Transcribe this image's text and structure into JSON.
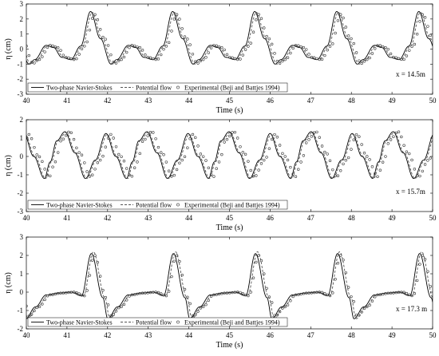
{
  "legend_labels": {
    "ns": "Two-phase Navier-Stokes",
    "pf": "Potential flow",
    "exp": "Experimental (Beji and Battjes 1994)"
  },
  "colors": {
    "ns": "#000000",
    "pf": "#555555",
    "exp": "#333333",
    "axis": "#000000"
  },
  "chart_data": [
    {
      "type": "line",
      "annotation": "x = 14.5m",
      "xlabel": "Time (s)",
      "ylabel": "η (cm)",
      "xlim": [
        40,
        50
      ],
      "ylim": [
        -3,
        3
      ],
      "xticks": [
        "40",
        "41",
        "42",
        "43",
        "44",
        "45",
        "46",
        "47",
        "48",
        "49",
        "50"
      ],
      "yticks": [
        "-3",
        "-2",
        "-1",
        "0",
        "1",
        "2",
        "3"
      ],
      "period": 2.02,
      "peak_times": [
        41.58,
        43.6,
        45.62,
        47.64,
        49.66
      ],
      "series": [
        {
          "name": "Two-phase Navier-Stokes",
          "style": "solid",
          "shape_t": [
            0.0,
            0.12,
            0.25,
            0.32,
            0.46,
            0.55,
            0.65,
            0.76,
            0.88,
            1.0
          ],
          "shape_eta": [
            2.5,
            0.7,
            -1.0,
            -0.7,
            0.25,
            0.1,
            -0.55,
            -0.7,
            0.2,
            2.5
          ]
        },
        {
          "name": "Potential flow",
          "style": "dashed",
          "phase_shift": 0.04,
          "shape_t": [
            0.0,
            0.12,
            0.25,
            0.32,
            0.46,
            0.55,
            0.65,
            0.76,
            0.88,
            1.0
          ],
          "shape_eta": [
            2.45,
            0.7,
            -1.0,
            -0.75,
            0.25,
            0.1,
            -0.55,
            -0.7,
            0.2,
            2.45
          ]
        },
        {
          "name": "Experimental (Beji and Battjes 1994)",
          "style": "circle",
          "phase_shift": 0.1,
          "shape_t": [
            0.0,
            0.12,
            0.25,
            0.32,
            0.46,
            0.55,
            0.65,
            0.76,
            0.88,
            1.0
          ],
          "shape_eta": [
            2.3,
            0.7,
            -0.95,
            -0.7,
            0.25,
            0.1,
            -0.55,
            -0.7,
            0.2,
            2.3
          ]
        }
      ]
    },
    {
      "type": "line",
      "annotation": "x = 15.7m",
      "xlabel": "Time (s)",
      "ylabel": "η (cm)",
      "xlim": [
        40,
        50
      ],
      "ylim": [
        -3,
        2
      ],
      "xticks": [
        "40",
        "41",
        "42",
        "43",
        "44",
        "45",
        "46",
        "47",
        "48",
        "49",
        "50"
      ],
      "yticks": [
        "-3",
        "-2",
        "-1",
        "0",
        "1",
        "2"
      ],
      "period": 2.02,
      "peak_times": [
        40.95,
        42.97,
        44.99,
        47.01,
        49.03
      ],
      "series": [
        {
          "name": "Two-phase Navier-Stokes",
          "style": "solid",
          "shape_t": [
            0.0,
            0.12,
            0.25,
            0.37,
            0.5,
            0.62,
            0.75,
            0.82,
            0.9,
            1.0
          ],
          "shape_eta": [
            1.35,
            0.2,
            -1.2,
            -0.2,
            1.25,
            0.0,
            -1.2,
            -0.3,
            0.85,
            1.35
          ]
        },
        {
          "name": "Potential flow",
          "style": "dashed",
          "phase_shift": 0.03,
          "shape_t": [
            0.0,
            0.12,
            0.25,
            0.37,
            0.5,
            0.62,
            0.75,
            0.82,
            0.9,
            1.0
          ],
          "shape_eta": [
            1.3,
            0.2,
            -1.2,
            -0.2,
            1.2,
            0.0,
            -1.2,
            -0.3,
            0.85,
            1.3
          ]
        },
        {
          "name": "Experimental (Beji and Battjes 1994)",
          "style": "circle",
          "phase_shift": 0.12,
          "shape_t": [
            0.0,
            0.12,
            0.25,
            0.37,
            0.5,
            0.62,
            0.75,
            0.82,
            0.9,
            1.0
          ],
          "shape_eta": [
            1.35,
            0.2,
            -1.1,
            -0.2,
            1.2,
            0.0,
            -1.1,
            -0.3,
            0.9,
            1.35
          ]
        }
      ]
    },
    {
      "type": "line",
      "annotation": "x = 17.3 m",
      "xlabel": "Time (s)",
      "ylabel": "η (cm)",
      "xlim": [
        40,
        50
      ],
      "ylim": [
        -2,
        3
      ],
      "xticks": [
        "40",
        "41",
        "42",
        "43",
        "44",
        "45",
        "46",
        "47",
        "48",
        "49",
        "50"
      ],
      "yticks": [
        "-2",
        "-1",
        "0",
        "1",
        "2",
        "3"
      ],
      "period": 2.02,
      "peak_times": [
        41.6,
        43.62,
        45.64,
        47.66,
        49.68
      ],
      "series": [
        {
          "name": "Two-phase Navier-Stokes",
          "style": "solid",
          "shape_t": [
            0.0,
            0.14,
            0.2,
            0.32,
            0.45,
            0.6,
            0.75,
            0.88,
            1.0
          ],
          "shape_eta": [
            2.1,
            -0.3,
            -1.45,
            -0.8,
            -0.15,
            -0.05,
            0.0,
            -0.2,
            2.1
          ]
        },
        {
          "name": "Potential flow",
          "style": "dashed",
          "phase_shift": 0.05,
          "shape_t": [
            0.0,
            0.14,
            0.2,
            0.32,
            0.45,
            0.6,
            0.75,
            0.88,
            1.0
          ],
          "shape_eta": [
            2.2,
            -0.3,
            -1.45,
            -0.8,
            -0.15,
            -0.05,
            0.0,
            -0.2,
            2.2
          ]
        },
        {
          "name": "Experimental (Beji and Battjes 1994)",
          "style": "circle",
          "phase_shift": 0.08,
          "shape_t": [
            0.0,
            0.14,
            0.2,
            0.32,
            0.45,
            0.6,
            0.75,
            0.88,
            1.0
          ],
          "shape_eta": [
            2.0,
            -0.3,
            -1.3,
            -0.8,
            -0.15,
            -0.05,
            0.0,
            -0.2,
            2.0
          ]
        }
      ]
    }
  ]
}
